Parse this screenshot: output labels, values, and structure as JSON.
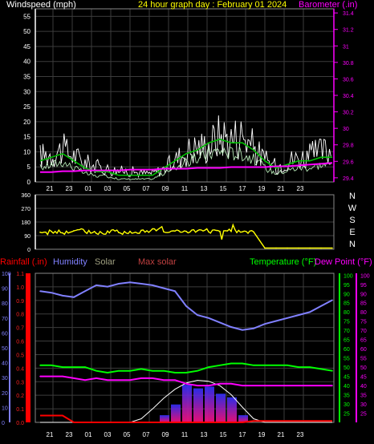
{
  "header": {
    "wind_label": "Windspeed (mph)",
    "title": "24 hour graph day : February 01 2024",
    "baro_label": "Barometer (.in)"
  },
  "legend": {
    "rainfall": "Rainfall (.in)",
    "humidity": "Humidity",
    "solar": "Solar",
    "max_solar": "Max solar",
    "temperature": "Temperature (°F)",
    "dew_point": "Dew Point (°F)"
  },
  "colors": {
    "background": "#000000",
    "grid": "#3c3c3c",
    "axis": "#ffffff",
    "wind_gust": "#ffffff",
    "wind_avg": "#00c000",
    "wind_avg_light": "#c8ffc8",
    "barometer": "#ff00ff",
    "direction": "#ffff00",
    "rainfall": "#ff0000",
    "humidity": "#8080ff",
    "solar": "#a0a080",
    "max_solar": "#8b0000",
    "temperature": "#00ff00",
    "dew_point": "#ff00ff",
    "title": "#ffff00"
  },
  "time_axis": [
    "21",
    "23",
    "01",
    "03",
    "05",
    "07",
    "09",
    "11",
    "13",
    "15",
    "17",
    "19",
    "21",
    "23"
  ],
  "chart_data": [
    {
      "type": "line",
      "title": "24 hour graph day : February 01 2024",
      "ylabel": "Windspeed (mph)",
      "y2label": "Barometer (.in)",
      "ylim": [
        0,
        57.5
      ],
      "y_ticks": [
        0,
        5,
        10,
        15,
        20,
        25,
        30,
        35,
        40,
        45,
        50,
        55
      ],
      "y2lim": [
        29.35,
        31.45
      ],
      "y2_ticks": [
        29.4,
        29.6,
        29.8,
        30,
        30.2,
        30.4,
        30.6,
        30.8,
        31,
        31.2,
        31.4
      ],
      "x": [
        "21",
        "22",
        "23",
        "00",
        "01",
        "02",
        "03",
        "04",
        "05",
        "06",
        "07",
        "08",
        "09",
        "10",
        "11",
        "12",
        "13",
        "14",
        "15",
        "16",
        "17",
        "18",
        "19",
        "20",
        "21",
        "22",
        "23"
      ],
      "series": [
        {
          "name": "Windspeed (mph)",
          "kind": "gust",
          "values": [
            12,
            13,
            15,
            12,
            9,
            7,
            6,
            5,
            5,
            4,
            4,
            6,
            10,
            14,
            16,
            17,
            22,
            20,
            22,
            16,
            10,
            7,
            10,
            11,
            12,
            14,
            15
          ]
        },
        {
          "name": "Windspeed (mph)",
          "kind": "average",
          "values": [
            5,
            6,
            7,
            5,
            3,
            2,
            2,
            1,
            1,
            1,
            1,
            3,
            5,
            7,
            8,
            10,
            11,
            10,
            10,
            8,
            5,
            3,
            4,
            5,
            5,
            6,
            6
          ]
        },
        {
          "name": "Barometer (.in)",
          "values": [
            29.47,
            29.47,
            29.48,
            29.48,
            29.49,
            29.49,
            29.49,
            29.49,
            29.5,
            29.5,
            29.5,
            29.51,
            29.51,
            29.51,
            29.52,
            29.52,
            29.52,
            29.53,
            29.53,
            29.53,
            29.53,
            29.54,
            29.54,
            29.55,
            29.56,
            29.57,
            29.58
          ]
        }
      ]
    },
    {
      "type": "scatter",
      "title": "",
      "ylim": [
        0,
        360
      ],
      "y_ticks": [
        0,
        90,
        180,
        270,
        360
      ],
      "compass": [
        "N",
        "W",
        "S",
        "E",
        "N"
      ],
      "x": [
        "21",
        "22",
        "23",
        "00",
        "01",
        "02",
        "03",
        "04",
        "05",
        "06",
        "07",
        "08",
        "09",
        "10",
        "11",
        "12",
        "13",
        "14",
        "15",
        "16",
        "17",
        "18",
        "19",
        "20",
        "21",
        "22",
        "23"
      ],
      "series": [
        {
          "name": "direction",
          "values": [
            112,
            118,
            108,
            122,
            115,
            105,
            120,
            110,
            118,
            125,
            135,
            115,
            120,
            118,
            122,
            115,
            118,
            118,
            115,
            115,
            8,
            8,
            8,
            8,
            8,
            8,
            8
          ]
        }
      ]
    },
    {
      "type": "line",
      "title": "",
      "rain_lim": [
        0,
        1.1
      ],
      "rain_ticks": [
        0,
        0.1,
        0.2,
        0.3,
        0.4,
        0.5,
        0.6,
        0.7,
        0.8,
        0.9,
        1.0,
        1.1
      ],
      "humidity_lim": [
        0,
        100
      ],
      "humidity_ticks": [
        0,
        10,
        20,
        30,
        40,
        50,
        60,
        70,
        80,
        90,
        100
      ],
      "temp_lim": [
        20.0,
        101.0
      ],
      "temp_ticks": [
        25,
        30,
        35,
        40,
        45,
        50,
        55,
        60,
        65,
        70,
        75,
        80,
        85,
        90,
        95,
        100
      ],
      "x": [
        "21",
        "22",
        "23",
        "00",
        "01",
        "02",
        "03",
        "04",
        "05",
        "06",
        "07",
        "08",
        "09",
        "10",
        "11",
        "12",
        "13",
        "14",
        "15",
        "16",
        "17",
        "18",
        "19",
        "20",
        "21",
        "22",
        "23"
      ],
      "series": [
        {
          "name": "Rainfall (.in)",
          "values": [
            0.05,
            0.05,
            0.05,
            0,
            0,
            0,
            0,
            0,
            0,
            0,
            0,
            0,
            0,
            0,
            0,
            0,
            0,
            0,
            0,
            0.01,
            0.01,
            0.01,
            0.01,
            0.01,
            0.01,
            0.01,
            0.01
          ]
        },
        {
          "name": "Humidity",
          "values": [
            88,
            87,
            85,
            84,
            88,
            92,
            91,
            93,
            94,
            93,
            92,
            90,
            88,
            78,
            72,
            70,
            67,
            64,
            62,
            63,
            66,
            68,
            70,
            72,
            74,
            78,
            82
          ]
        },
        {
          "name": "Solar",
          "values": [
            0,
            0,
            0,
            0,
            0,
            0,
            0,
            0,
            0,
            0,
            0,
            8,
            20,
            42,
            38,
            40,
            32,
            28,
            8,
            0,
            0,
            0,
            0,
            0,
            0,
            0,
            0
          ]
        },
        {
          "name": "Max solar",
          "values": [
            0,
            0,
            0,
            0,
            0,
            0,
            0,
            0,
            0,
            4,
            15,
            27,
            37,
            44,
            47,
            46,
            41,
            31,
            17,
            4,
            0,
            0,
            0,
            0,
            0,
            0,
            0
          ]
        },
        {
          "name": "Temperature (°F)",
          "values": [
            51,
            51,
            50,
            50,
            50,
            48,
            47,
            48,
            48,
            49,
            48,
            48,
            47,
            47,
            48,
            50,
            51,
            52,
            52,
            51,
            51,
            51,
            51,
            50,
            50,
            49,
            48
          ]
        },
        {
          "name": "Dew Point (°F)",
          "values": [
            45,
            45,
            45,
            44,
            43,
            44,
            43,
            43,
            43,
            44,
            44,
            43,
            43,
            41,
            40,
            40,
            41,
            41,
            40,
            40,
            40,
            40,
            40,
            40,
            40,
            40,
            40
          ]
        }
      ]
    }
  ]
}
